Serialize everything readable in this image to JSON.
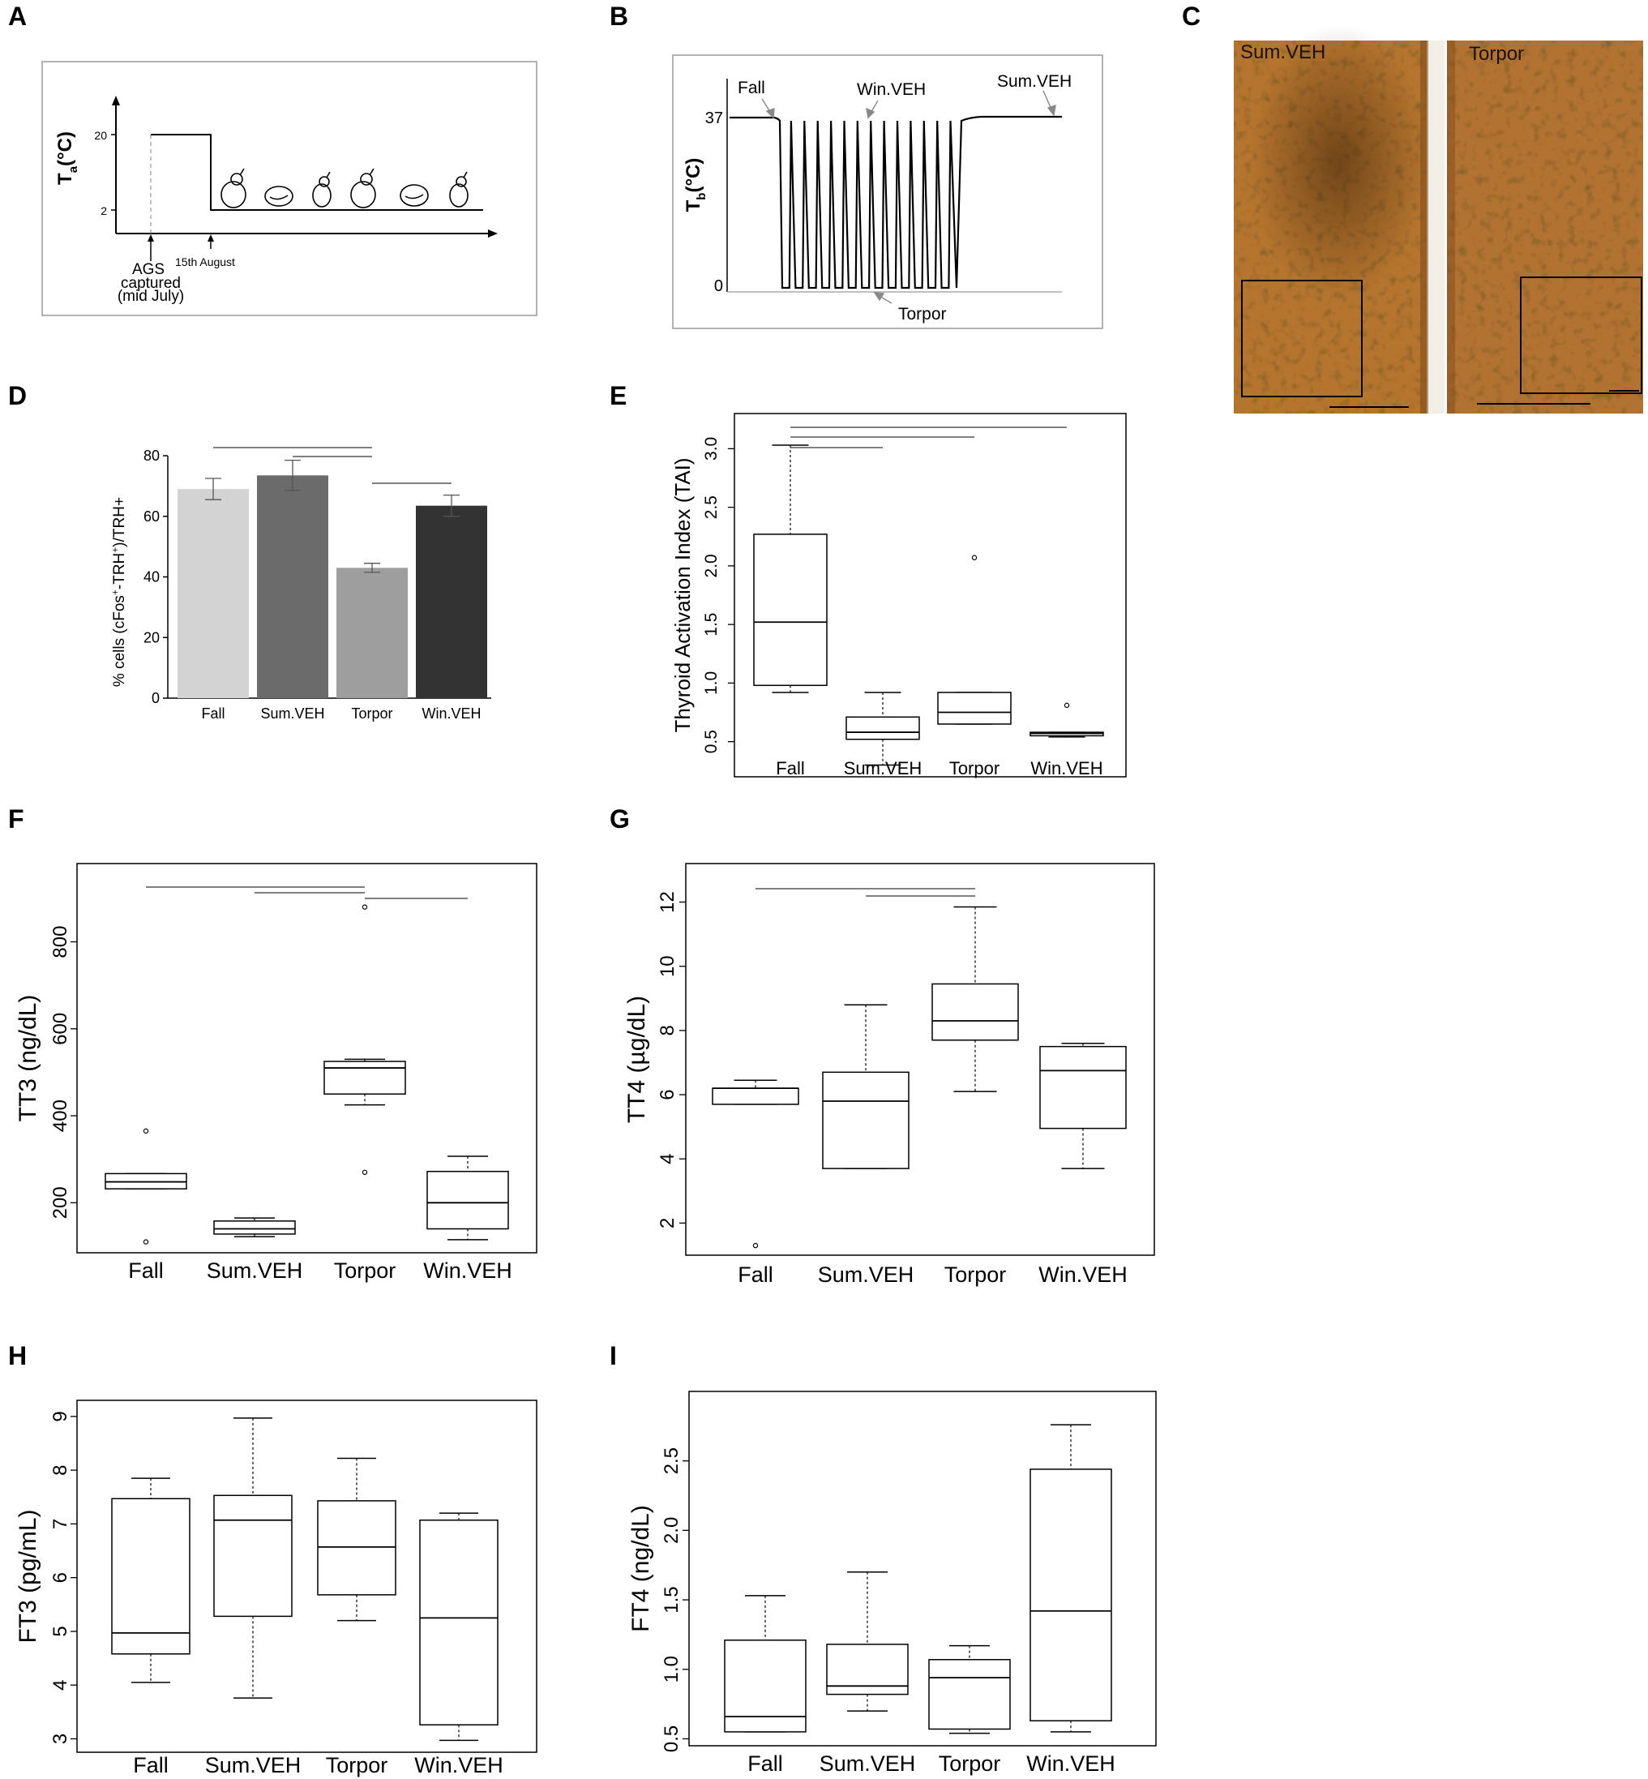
{
  "panels": {
    "A": "A",
    "B": "B",
    "C": "C",
    "D": "D",
    "E": "E",
    "F": "F",
    "G": "G",
    "H": "H",
    "I": "I"
  },
  "chart_data": [
    {
      "panel": "A",
      "type": "line",
      "ylabel": "Ta(°C)",
      "ylabel_main": "T",
      "ylabel_sub": "a",
      "ylabel_unit": "(°C)",
      "yticks": [
        "20",
        "2"
      ],
      "segments": [
        {
          "phase": "captured",
          "value": 20
        },
        {
          "phase": "after 15th August",
          "value": 2
        }
      ],
      "annotations": [
        "AGS",
        "captured",
        "(mid July)",
        "15th August"
      ]
    },
    {
      "panel": "B",
      "type": "line",
      "ylabel": "Tb(°C)",
      "ylabel_main": "T",
      "ylabel_sub": "b",
      "ylabel_unit": "(°C)",
      "yticks": [
        "37",
        "0"
      ],
      "baseline_level": 37,
      "torpor_level": 0,
      "torpor_bouts": 13,
      "annotations": {
        "fall": "Fall",
        "winveh": "Win.VEH",
        "sumveh": "Sum.VEH",
        "torpor": "Torpor"
      }
    },
    {
      "panel": "D",
      "type": "bar",
      "ylabel": "% cells  (cFos+-TRH+)/TRH+",
      "ylabel_parts": [
        "% cells  (cFos",
        "+",
        "-TRH",
        "+",
        ")/TRH+"
      ],
      "categories": [
        "Fall",
        "Sum.VEH",
        "Torpor",
        "Win.VEH"
      ],
      "values": [
        69,
        73.5,
        43,
        63.5
      ],
      "errors": [
        3.5,
        5,
        1.5,
        3.5
      ],
      "colors": [
        "#d3d3d3",
        "#6b6b6b",
        "#9e9e9e",
        "#333333"
      ],
      "ylim": [
        0,
        80
      ],
      "yticks": [
        0,
        20,
        40,
        60,
        80
      ]
    },
    {
      "panel": "E",
      "type": "box",
      "ylabel": "Thyroid Activation Index (TAI)",
      "categories": [
        "Fall",
        "Sum.VEH",
        "Torpor",
        "Win.VEH"
      ],
      "ylim": [
        0.2,
        3.3
      ],
      "yticks": [
        "0.5",
        "1.0",
        "1.5",
        "2.0",
        "2.5",
        "3.0"
      ],
      "boxes": [
        {
          "whislo": 0.92,
          "q1": 0.98,
          "med": 1.52,
          "q3": 2.27,
          "whishi": 3.03,
          "outliers": []
        },
        {
          "whislo": 0.3,
          "q1": 0.52,
          "med": 0.58,
          "q3": 0.71,
          "whishi": 0.92,
          "outliers": []
        },
        {
          "whislo": 0.65,
          "q1": 0.65,
          "med": 0.75,
          "q3": 0.92,
          "whishi": 0.92,
          "outliers": [
            2.07
          ]
        },
        {
          "whislo": 0.54,
          "q1": 0.55,
          "med": 0.57,
          "q3": 0.58,
          "whishi": 0.58,
          "outliers": [
            0.81
          ]
        }
      ]
    },
    {
      "panel": "F",
      "type": "box",
      "ylabel": "TT3 (ng/dL)",
      "categories": [
        "Fall",
        "Sum.VEH",
        "Torpor",
        "Win.VEH"
      ],
      "ylim": [
        85,
        980
      ],
      "yticks": [
        "200",
        "400",
        "600",
        "800"
      ],
      "boxes": [
        {
          "whislo": 232,
          "q1": 232,
          "med": 248,
          "q3": 267,
          "whishi": 267,
          "outliers": [
            110,
            365
          ]
        },
        {
          "whislo": 122,
          "q1": 128,
          "med": 140,
          "q3": 158,
          "whishi": 165,
          "outliers": []
        },
        {
          "whislo": 425,
          "q1": 450,
          "med": 510,
          "q3": 525,
          "whishi": 530,
          "outliers": [
            270,
            880
          ]
        },
        {
          "whislo": 115,
          "q1": 140,
          "med": 200,
          "q3": 272,
          "whishi": 307,
          "outliers": []
        }
      ]
    },
    {
      "panel": "G",
      "type": "box",
      "ylabel": "TT4 (µg/dL)",
      "categories": [
        "Fall",
        "Sum.VEH",
        "Torpor",
        "Win.VEH"
      ],
      "ylim": [
        1.0,
        13.2
      ],
      "yticks": [
        "2",
        "4",
        "6",
        "8",
        "10",
        "12"
      ],
      "boxes": [
        {
          "whislo": 5.7,
          "q1": 5.7,
          "med": 6.2,
          "q3": 6.2,
          "whishi": 6.45,
          "outliers": [
            1.3
          ]
        },
        {
          "whislo": 3.7,
          "q1": 3.7,
          "med": 5.8,
          "q3": 6.7,
          "whishi": 8.8,
          "outliers": []
        },
        {
          "whislo": 6.1,
          "q1": 7.7,
          "med": 8.3,
          "q3": 9.45,
          "whishi": 11.85,
          "outliers": []
        },
        {
          "whislo": 3.7,
          "q1": 4.95,
          "med": 6.75,
          "q3": 7.5,
          "whishi": 7.6,
          "outliers": []
        }
      ]
    },
    {
      "panel": "H",
      "type": "box",
      "ylabel": "FT3 (pg/mL)",
      "categories": [
        "Fall",
        "Sum.VEH",
        "Torpor",
        "Win.VEH"
      ],
      "ylim": [
        2.75,
        9.3
      ],
      "yticks": [
        "3",
        "4",
        "5",
        "6",
        "7",
        "8",
        "9"
      ],
      "boxes": [
        {
          "whislo": 4.05,
          "q1": 4.58,
          "med": 4.97,
          "q3": 7.47,
          "whishi": 7.85,
          "outliers": []
        },
        {
          "whislo": 3.76,
          "q1": 5.28,
          "med": 7.07,
          "q3": 7.53,
          "whishi": 8.97,
          "outliers": []
        },
        {
          "whislo": 5.2,
          "q1": 5.68,
          "med": 6.57,
          "q3": 7.43,
          "whishi": 8.22,
          "outliers": []
        },
        {
          "whislo": 2.97,
          "q1": 3.26,
          "med": 5.25,
          "q3": 7.07,
          "whishi": 7.2,
          "outliers": []
        }
      ]
    },
    {
      "panel": "I",
      "type": "box",
      "ylabel": "FT4 (ng/dL)",
      "categories": [
        "Fall",
        "Sum.VEH",
        "Torpor",
        "Win.VEH"
      ],
      "ylim": [
        0.45,
        3.0
      ],
      "yticks": [
        "0.5",
        "1.0",
        "1.5",
        "2.0",
        "2.5"
      ],
      "boxes": [
        {
          "whislo": 0.55,
          "q1": 0.55,
          "med": 0.66,
          "q3": 1.21,
          "whishi": 1.53,
          "outliers": []
        },
        {
          "whislo": 0.7,
          "q1": 0.82,
          "med": 0.88,
          "q3": 1.18,
          "whishi": 1.7,
          "outliers": []
        },
        {
          "whislo": 0.54,
          "q1": 0.57,
          "med": 0.94,
          "q3": 1.07,
          "whishi": 1.17,
          "outliers": []
        },
        {
          "whislo": 0.55,
          "q1": 0.63,
          "med": 1.42,
          "q3": 2.44,
          "whishi": 2.76,
          "outliers": []
        }
      ]
    }
  ],
  "micrograph": {
    "left_label": "Sum.VEH",
    "right_label": "Torpor"
  }
}
